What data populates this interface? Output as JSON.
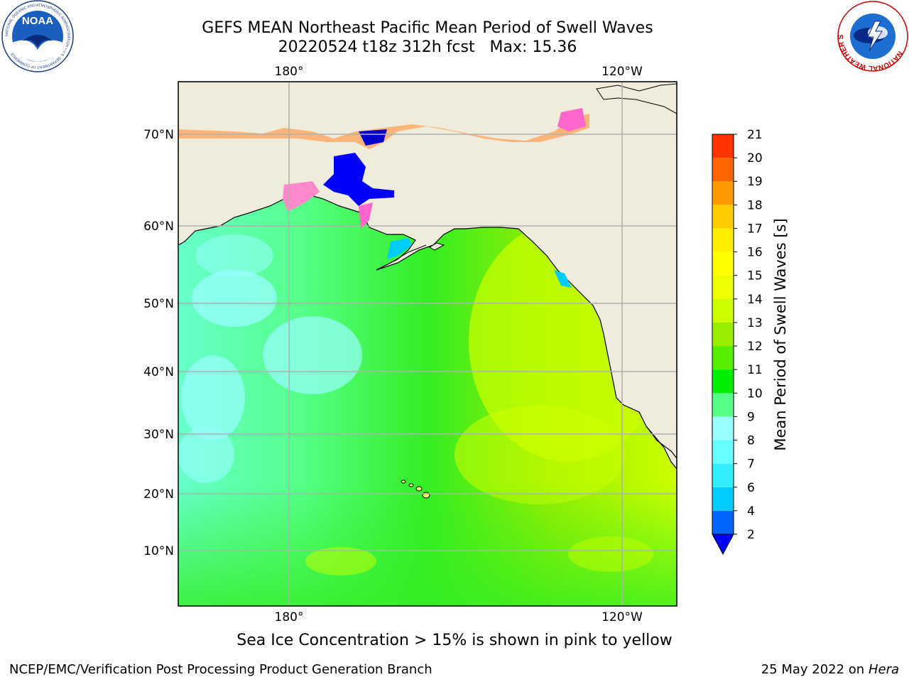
{
  "header": {
    "title": "GEFS MEAN Northeast Pacific Mean Period of Swell Waves",
    "subtitle": "20220524 t18z 312h fcst   Max: 15.36"
  },
  "logos": {
    "left": {
      "name": "NOAA",
      "ring_text": "NATIONAL OCEANIC AND ATMOSPHERIC ADMINISTRATION • U.S. DEPARTMENT OF COMMERCE"
    },
    "right": {
      "name": "NATIONAL WEATHER SERVICE"
    }
  },
  "map": {
    "lon_labels_top": [
      "180°",
      "120°W"
    ],
    "lon_labels_bottom": [
      "180°",
      "120°W"
    ],
    "lat_labels": [
      "70°N",
      "60°N",
      "50°N",
      "40°N",
      "30°N",
      "20°N",
      "10°N"
    ],
    "colors": {
      "land": "#efecdc",
      "grid": "#b0b0b0",
      "coast": "#000000"
    }
  },
  "colorbar": {
    "label": "Mean Period of Swell Waves [s]",
    "ticks": [
      "2",
      "4",
      "6",
      "7",
      "8",
      "9",
      "10",
      "11",
      "12",
      "13",
      "14",
      "15",
      "16",
      "17",
      "18",
      "19",
      "20",
      "21"
    ],
    "colors": [
      "#0066ff",
      "#00ccff",
      "#33eeff",
      "#66ffff",
      "#99ffff",
      "#55ff88",
      "#00ee00",
      "#55ee00",
      "#99ee00",
      "#ccff00",
      "#eeff00",
      "#ffff00",
      "#ffee00",
      "#ffcc00",
      "#ff9900",
      "#ff6600",
      "#ff3300",
      "#ff0000"
    ],
    "extend_color": "#0000ff"
  },
  "notes": {
    "ice": "Sea Ice Concentration > 15% is shown in pink to yellow"
  },
  "footer": {
    "left": "NCEP/EMC/Verification Post Processing Product Generation Branch",
    "date": "25 May 2022 on",
    "host": "Hera"
  }
}
